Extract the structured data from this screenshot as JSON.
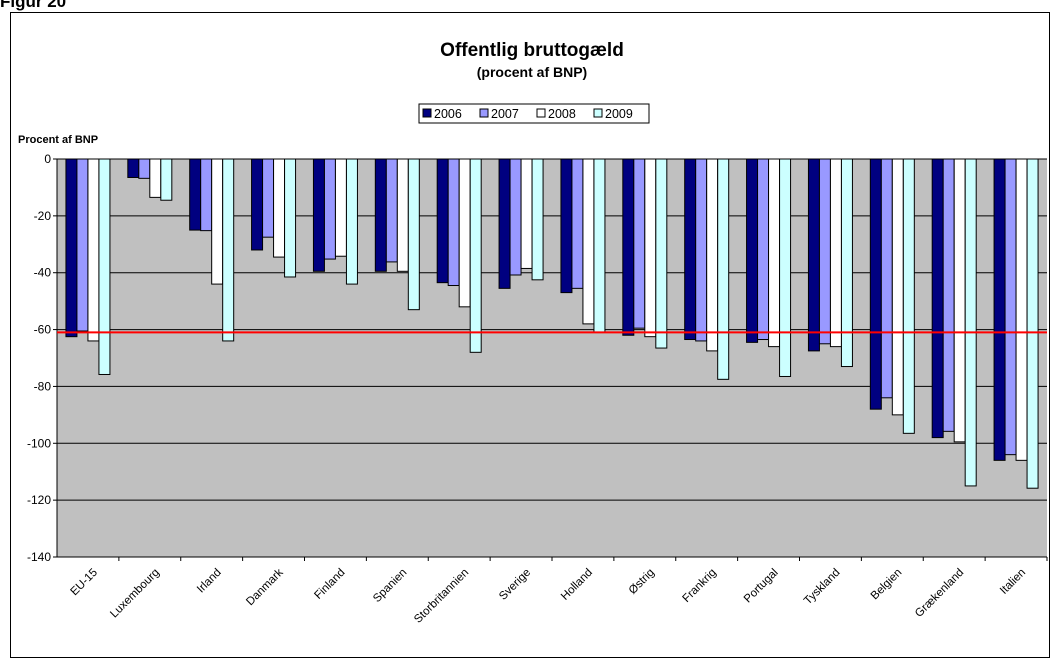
{
  "figure_label": "Figur 20",
  "chart_data": {
    "type": "bar",
    "title": "Offentlig bruttogæld",
    "subtitle": "(procent af BNP)",
    "ylabel": "Procent af BNP",
    "xlabel": "",
    "ylim": [
      -140,
      0
    ],
    "yticks": [
      0,
      -20,
      -40,
      -60,
      -80,
      -100,
      -120,
      -140
    ],
    "grid": true,
    "legend_position": "top-center",
    "reference_line": {
      "value": -61,
      "color": "#ff0000"
    },
    "plot_background": "#c0c0c0",
    "categories": [
      "EU-15",
      "Luxembourg",
      "Irland",
      "Danmark",
      "Finland",
      "Spanien",
      "Storbritannien",
      "Sverige",
      "Holland",
      "Østrig",
      "Frankrig",
      "Portugal",
      "Tyskland",
      "Belgien",
      "Grækenland",
      "Italien"
    ],
    "series": [
      {
        "name": "2006",
        "color": "#000080",
        "values": [
          -62.5,
          -6.5,
          -25,
          -32,
          -39.5,
          -39.5,
          -43.5,
          -45.5,
          -47,
          -62,
          -63.5,
          -64.5,
          -67.5,
          -88,
          -98,
          -106
        ]
      },
      {
        "name": "2007",
        "color": "#9999ff",
        "values": [
          -60.5,
          -6.8,
          -25.2,
          -27.5,
          -35.2,
          -36.2,
          -44.5,
          -40.8,
          -45.5,
          -59.5,
          -64,
          -63.5,
          -65,
          -84,
          -95.8,
          -104
        ]
      },
      {
        "name": "2008",
        "color": "#ffffff",
        "values": [
          -64,
          -13.5,
          -44,
          -34.5,
          -34.2,
          -39.5,
          -52,
          -38.5,
          -58,
          -62.5,
          -67.5,
          -66,
          -66,
          -90,
          -99.5,
          -106
        ]
      },
      {
        "name": "2009",
        "color": "#ccffff",
        "values": [
          -75.8,
          -14.5,
          -64,
          -41.5,
          -44,
          -53,
          -68,
          -42.5,
          -61,
          -66.5,
          -77.5,
          -76.5,
          -73,
          -96.5,
          -115,
          -115.8
        ]
      }
    ]
  }
}
